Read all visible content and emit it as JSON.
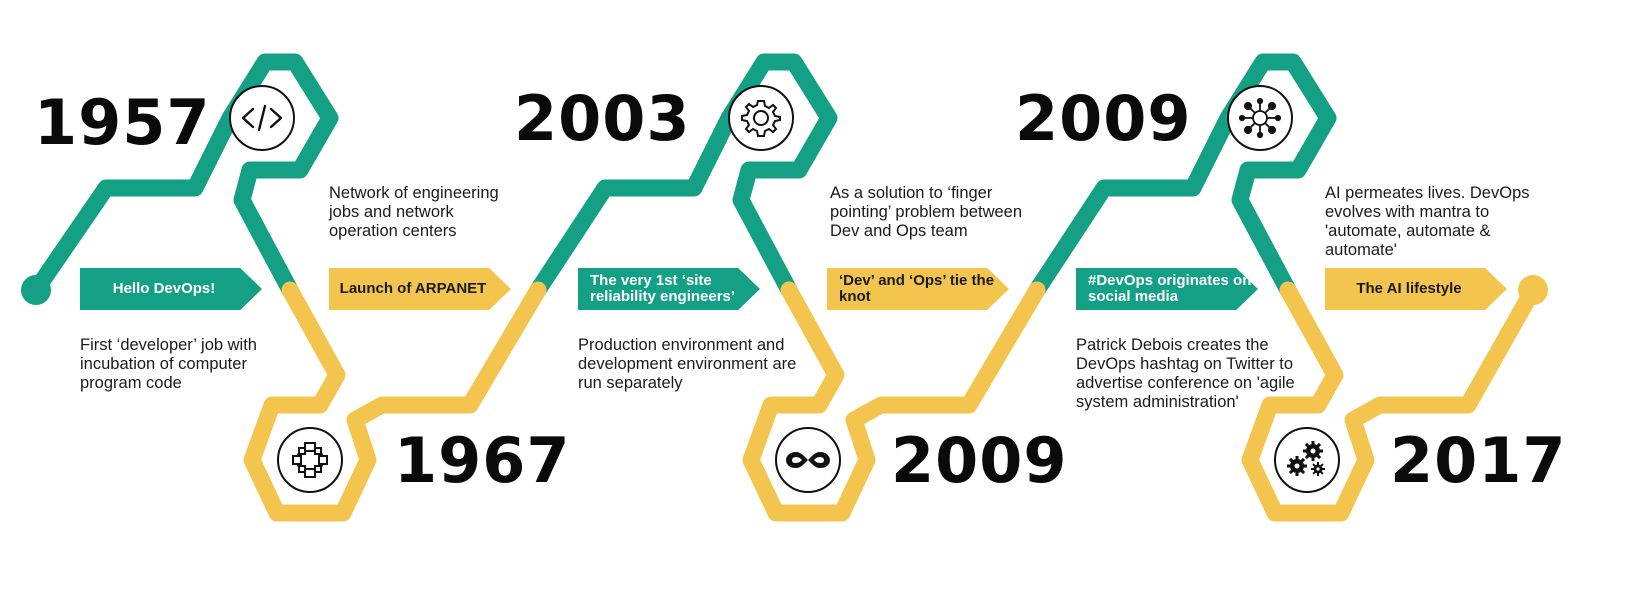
{
  "colors": {
    "green": "#13a084",
    "yellow": "#f4c54e",
    "text": "#1a1a1a"
  },
  "milestones": [
    {
      "year": "1957",
      "label": "Hello DevOps!",
      "description": "First ‘developer’ job with incubation of computer program code",
      "icon": "code-icon"
    },
    {
      "year": "1967",
      "label": "Launch of ARPANET",
      "description": "Network of engineering jobs and network operation centers",
      "icon": "network-nodes-icon"
    },
    {
      "year": "2003",
      "label": "The very 1st ‘site reliability engineers’",
      "description": "Production environment and development environment are run separately",
      "icon": "gear-icon"
    },
    {
      "year": "2009",
      "label": "‘Dev’ and ‘Ops’ tie the knot",
      "description": "As a solution to ‘finger pointing’ problem between Dev and Ops team",
      "icon": "infinity-icon"
    },
    {
      "year": "2009",
      "label": "#DevOps originates on social media",
      "description": "Patrick Debois creates the DevOps hashtag on Twitter to advertise conference on 'agile system administration'",
      "icon": "hub-network-icon"
    },
    {
      "year": "2017",
      "label": "The AI lifestyle",
      "description": "AI permeates lives. DevOps evolves with mantra to 'automate, automate & automate'",
      "icon": "gears-icon"
    }
  ]
}
